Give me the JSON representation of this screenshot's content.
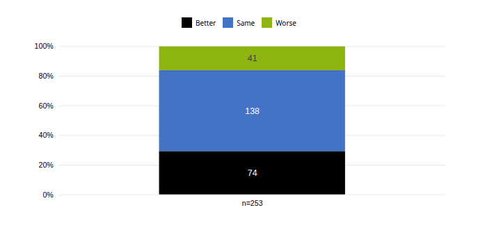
{
  "chart_data": {
    "type": "bar",
    "stacked": true,
    "categories": [
      "n=253"
    ],
    "series": [
      {
        "name": "Better",
        "color": "#000000",
        "values": [
          0.2924901185770751
        ],
        "counts": [
          74
        ]
      },
      {
        "name": "Same",
        "color": "#4472C4",
        "values": [
          0.5454545454545454
        ],
        "counts": [
          138
        ]
      },
      {
        "name": "Worse",
        "color": "#8DB410",
        "values": [
          0.16205533596837945
        ],
        "counts": [
          41
        ]
      }
    ],
    "ylim": [
      0,
      1.0
    ],
    "yticks": [
      {
        "value": 0.0,
        "label": "0%"
      },
      {
        "value": 0.2,
        "label": "20%"
      },
      {
        "value": 0.4,
        "label": "40%"
      },
      {
        "value": 0.6,
        "label": "60%"
      },
      {
        "value": 0.8,
        "label": "80%"
      },
      {
        "value": 1.0,
        "label": "100%"
      }
    ],
    "grid": true,
    "legend": "top"
  }
}
